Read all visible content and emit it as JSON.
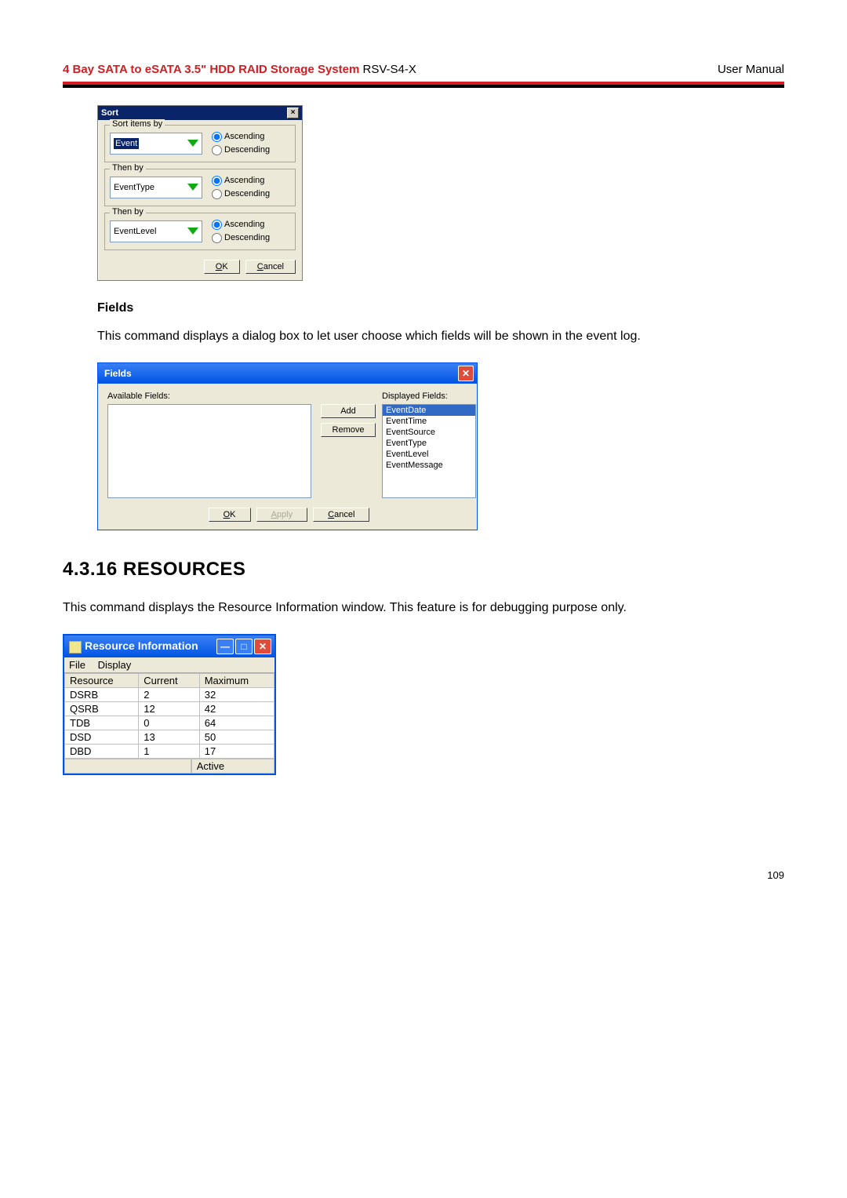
{
  "header": {
    "title_bold": "4 Bay SATA to eSATA 3.5\" HDD RAID Storage System ",
    "title_model": "RSV-S4-X",
    "right": "User Manual"
  },
  "colors": {
    "accent_red": "#d21d22",
    "titlebar_classic": "#0a246a",
    "titlebar_xp_top": "#3a80f4",
    "titlebar_xp_bottom": "#0054e3",
    "close_red": "#e14c3a",
    "dialog_bg": "#ece9d8",
    "select_highlight": "#316ac5"
  },
  "sort_dialog": {
    "title": "Sort",
    "groups": [
      {
        "legend": "Sort items by",
        "value": "Event",
        "selected": true,
        "asc_checked": true,
        "asc": "Ascending",
        "desc": "Descending"
      },
      {
        "legend": "Then by",
        "value": "EventType",
        "selected": false,
        "asc_checked": true,
        "asc": "Ascending",
        "desc": "Descending"
      },
      {
        "legend": "Then by",
        "value": "EventLevel",
        "selected": false,
        "asc_checked": true,
        "asc": "Ascending",
        "desc": "Descending"
      }
    ],
    "ok": "OK",
    "cancel": "Cancel"
  },
  "fields_section": {
    "heading": "Fields",
    "paragraph": "This command displays a dialog box to let user choose which fields will be shown in the event log."
  },
  "fields_dialog": {
    "title": "Fields",
    "available_label": "Available Fields:",
    "displayed_label": "Displayed Fields:",
    "add": "Add",
    "remove": "Remove",
    "ok": "OK",
    "apply": "Apply",
    "cancel": "Cancel",
    "available_items": [],
    "displayed_items": [
      {
        "label": "EventDate",
        "selected": true
      },
      {
        "label": "EventTime",
        "selected": false
      },
      {
        "label": "EventSource",
        "selected": false
      },
      {
        "label": "EventType",
        "selected": false
      },
      {
        "label": "EventLevel",
        "selected": false
      },
      {
        "label": "EventMessage",
        "selected": false
      }
    ]
  },
  "resources_section": {
    "heading": "4.3.16  RESOURCES",
    "paragraph": "This command displays the Resource Information window. This feature is for debugging purpose only."
  },
  "res_window": {
    "title": "Resource Information",
    "menu": {
      "file": "File",
      "display": "Display"
    },
    "columns": [
      "Resource",
      "Current",
      "Maximum"
    ],
    "rows": [
      [
        "DSRB",
        "2",
        "32"
      ],
      [
        "QSRB",
        "12",
        "42"
      ],
      [
        "TDB",
        "0",
        "64"
      ],
      [
        "DSD",
        "13",
        "50"
      ],
      [
        "DBD",
        "1",
        "17"
      ]
    ],
    "status_right": "Active"
  },
  "page_number": "109"
}
